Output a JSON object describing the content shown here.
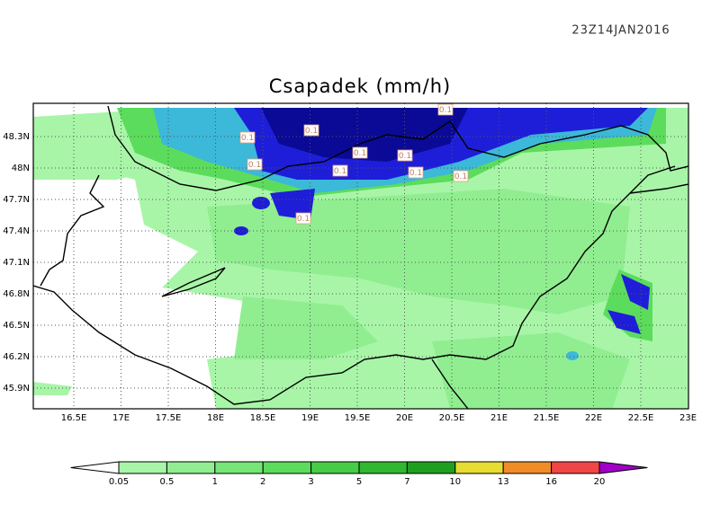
{
  "header": {
    "timestamp": "23Z14JAN2016",
    "title": "Csapadek (mm/h)"
  },
  "map": {
    "x_ticks": [
      "16.5E",
      "17E",
      "17.5E",
      "18E",
      "18.5E",
      "19E",
      "19.5E",
      "20E",
      "20.5E",
      "21E",
      "21.5E",
      "22E",
      "22.5E",
      "23E"
    ],
    "y_ticks": [
      "48.3N",
      "48N",
      "47.7N",
      "47.4N",
      "47.1N",
      "46.8N",
      "46.5N",
      "46.2N",
      "45.9N"
    ],
    "contour_labels": [
      "0.1",
      "0.1",
      "0.1",
      "0.1",
      "0.1",
      "0.1",
      "0.1",
      "0.1",
      "0.1",
      "0.1"
    ]
  },
  "colorbar": {
    "labels": [
      "0.05",
      "0.5",
      "1",
      "2",
      "3",
      "5",
      "7",
      "10",
      "13",
      "16",
      "20"
    ],
    "colors": [
      "#ffffff",
      "#a8f5a8",
      "#90ee90",
      "#76e676",
      "#5cdc5c",
      "#46cc46",
      "#30b830",
      "#1ea01e",
      "#e6dc32",
      "#f08c28",
      "#f04646",
      "#a000c8"
    ]
  }
}
